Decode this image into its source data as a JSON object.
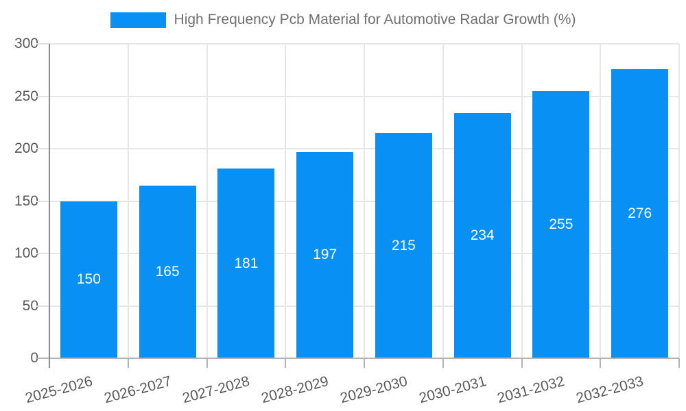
{
  "chart_data": {
    "type": "bar",
    "title": "High Frequency Pcb Material for Automotive Radar Growth (%)",
    "categories": [
      "2025-2026",
      "2026-2027",
      "2027-2028",
      "2028-2029",
      "2029-2030",
      "2030-2031",
      "2031-2032",
      "2032-2033"
    ],
    "values": [
      150,
      165,
      181,
      197,
      215,
      234,
      255,
      276
    ],
    "xlabel": "",
    "ylabel": "",
    "ylim": [
      0,
      300
    ],
    "ytick_step": 50,
    "yticks": [
      0,
      50,
      100,
      150,
      200,
      250,
      300
    ],
    "grid": true,
    "legend_position": "top-center",
    "x_label_rotation_deg": -15,
    "bar_value_labels_visible": true,
    "colors": {
      "bar": "#0890F4",
      "bar_value_label": "#FFFFFF",
      "legend_text": "#707070",
      "tick_label": "#595959",
      "gridline": "#E6E6E6",
      "y_axis_line": "#8A8A8A",
      "x_axis_line": "#B2B2B2",
      "background": "#FFFFFF"
    }
  }
}
